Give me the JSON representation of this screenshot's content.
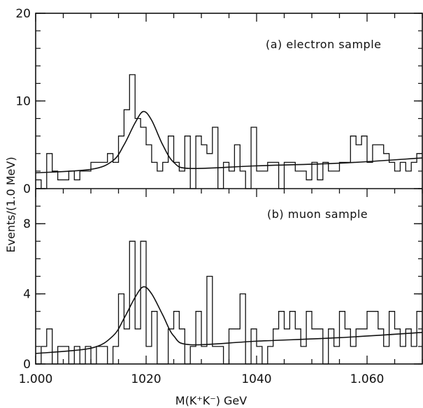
{
  "chart_data": {
    "type": "histogram",
    "xlabel": "M(K⁺K⁻) GeV",
    "ylabel": "Events/(1.0 MeV)",
    "xlim": [
      1.0,
      1.07
    ],
    "x_ticks": [
      "1.000",
      "1020",
      "1040",
      "1.060"
    ],
    "bin_width": 0.001,
    "bin_start": 1.0,
    "panels": [
      {
        "label": "(a) electron sample",
        "ylim": [
          0,
          20
        ],
        "y_ticks": [
          "0",
          "10",
          "20"
        ],
        "counts": [
          1,
          0,
          4,
          2,
          1,
          1,
          2,
          1,
          2,
          2,
          3,
          3,
          3,
          4,
          3,
          6,
          9,
          13,
          8,
          7,
          5,
          3,
          2,
          3,
          6,
          3,
          2,
          6,
          0,
          6,
          5,
          4,
          7,
          0,
          3,
          2,
          5,
          2,
          0,
          7,
          2,
          2,
          3,
          3,
          0,
          3,
          3,
          2,
          2,
          1,
          3,
          1,
          3,
          2,
          2,
          3,
          3,
          6,
          5,
          6,
          3,
          5,
          5,
          4,
          3,
          2,
          3,
          2,
          3,
          4
        ],
        "fit": [
          [
            1.0,
            1.8
          ],
          [
            1.01,
            2.2
          ],
          [
            1.014,
            3.2
          ],
          [
            1.016,
            5.0
          ],
          [
            1.018,
            7.5
          ],
          [
            1.0195,
            8.8
          ],
          [
            1.021,
            7.8
          ],
          [
            1.023,
            5.0
          ],
          [
            1.025,
            3.0
          ],
          [
            1.028,
            2.3
          ],
          [
            1.04,
            2.6
          ],
          [
            1.055,
            2.9
          ],
          [
            1.07,
            3.5
          ]
        ]
      },
      {
        "label": "(b) muon sample",
        "ylim": [
          0,
          10
        ],
        "y_ticks": [
          "0",
          "4",
          "8"
        ],
        "counts": [
          0,
          1,
          2,
          0,
          1,
          1,
          0,
          1,
          0,
          1,
          0,
          1,
          1,
          0,
          1,
          4,
          2,
          7,
          2,
          7,
          1,
          3,
          0,
          0,
          2,
          3,
          2,
          0,
          1,
          3,
          1,
          5,
          1,
          1,
          0,
          2,
          2,
          4,
          0,
          2,
          1,
          0,
          1,
          2,
          3,
          2,
          3,
          2,
          1,
          3,
          2,
          2,
          0,
          2,
          1,
          3,
          2,
          1,
          2,
          2,
          3,
          3,
          2,
          1,
          3,
          2,
          1,
          2,
          1,
          3
        ],
        "fit": [
          [
            1.0,
            0.6
          ],
          [
            1.01,
            0.9
          ],
          [
            1.014,
            1.6
          ],
          [
            1.016,
            2.6
          ],
          [
            1.018,
            3.8
          ],
          [
            1.0195,
            4.4
          ],
          [
            1.021,
            4.0
          ],
          [
            1.023,
            2.8
          ],
          [
            1.025,
            1.6
          ],
          [
            1.028,
            1.1
          ],
          [
            1.04,
            1.3
          ],
          [
            1.055,
            1.5
          ],
          [
            1.07,
            1.8
          ]
        ]
      }
    ]
  }
}
